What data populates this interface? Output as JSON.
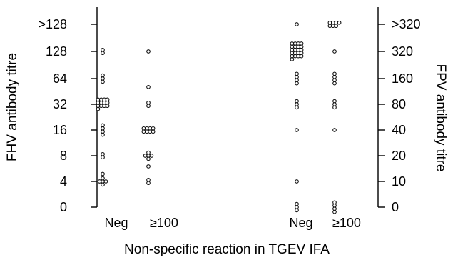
{
  "chart_data": {
    "type": "scatter",
    "title": "",
    "xlabel": "Non-specific reaction in TGEV IFA",
    "ylabel_left": "FHV antibody titre",
    "ylabel_right": "FPV antibody titre",
    "x_category_labels": [
      "Neg",
      "≥100",
      "Neg",
      "≥100"
    ],
    "y_ticks_left": [
      "0",
      "4",
      "8",
      "16",
      "32",
      "64",
      "128",
      ">128"
    ],
    "y_ticks_right": [
      "0",
      "10",
      "20",
      "40",
      "80",
      "160",
      "320",
      ">320"
    ],
    "grid": false,
    "series": [
      {
        "axis": "left",
        "category": "Neg",
        "values": [
          "4",
          "4",
          "4",
          "4",
          "4",
          "4.9",
          "8",
          "8",
          "16",
          "16",
          "16",
          "16",
          "32",
          "32",
          "32",
          "32",
          "32",
          "32",
          "32",
          "32",
          "32",
          "32",
          "32",
          "32",
          "32",
          "64",
          "64",
          "64",
          "128",
          "128"
        ]
      },
      {
        "axis": "left",
        "category": "≥100",
        "values": [
          "4",
          "4",
          "6",
          "8",
          "8",
          "8",
          "8",
          "8",
          "16",
          "16",
          "16",
          "16",
          "16",
          "16",
          "16",
          "16",
          "32",
          "32",
          "51",
          "128"
        ]
      },
      {
        "axis": "right",
        "category": "Neg",
        "values": [
          "0",
          "0",
          "0",
          "10",
          "40",
          "80",
          "80",
          "80",
          "160",
          "160",
          "160",
          "160",
          "320",
          "320",
          "320",
          "320",
          "320",
          "320",
          "320",
          "320",
          "320",
          "320",
          "320",
          "320",
          "320",
          "320",
          "320",
          "320",
          "320",
          "320",
          "320",
          "320",
          "320",
          ">320"
        ]
      },
      {
        "axis": "right",
        "category": "≥100",
        "values": [
          "0",
          "0",
          "0",
          "0",
          "40",
          "80",
          "80",
          "80",
          "160",
          "160",
          "160",
          "160",
          "320",
          ">320",
          ">320",
          ">320",
          ">320",
          ">320",
          ">320",
          ">320"
        ]
      }
    ]
  }
}
